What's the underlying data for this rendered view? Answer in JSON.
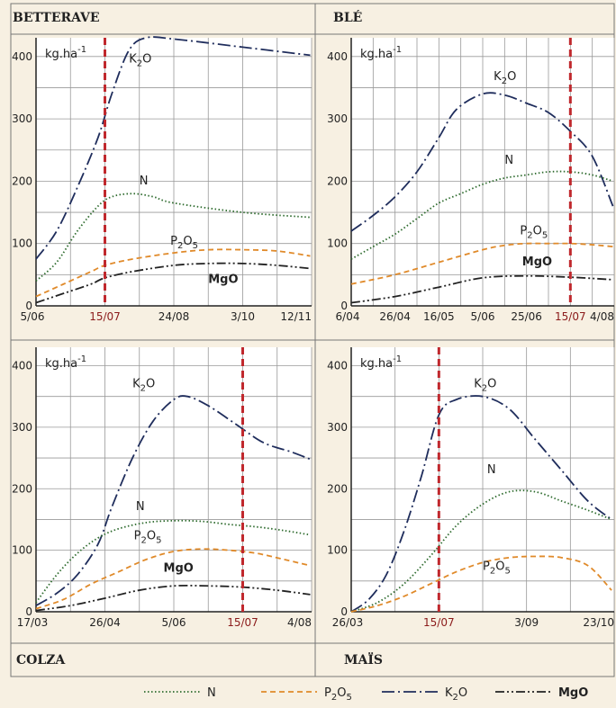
{
  "colors": {
    "N": "#2e6b2e",
    "P2O5": "#e08a2a",
    "K2O": "#1f2d5c",
    "MgO": "#222222",
    "harvest_line": "#c0282d",
    "grid": "#999999",
    "panel_bg": "#ffffff",
    "page_bg": "#f7f0e2"
  },
  "headers": {
    "top_left": "BETTERAVE",
    "top_right": "BLÉ",
    "bottom_left": "COLZA",
    "bottom_right": "MAÏS"
  },
  "unit_label": "kg.ha",
  "unit_exp": "-1",
  "legend": [
    {
      "key": "N",
      "label": "N"
    },
    {
      "key": "P2O5",
      "label": "P",
      "sub": "2",
      "after": "O",
      "sub2": "5"
    },
    {
      "key": "K2O",
      "label": "K",
      "sub": "2",
      "after": "O",
      "sub2": ""
    },
    {
      "key": "MgO",
      "label": "MgO",
      "bold": true
    }
  ],
  "chart_data": [
    {
      "type": "line",
      "title": "BETTERAVE",
      "ylabel": "kg.ha-1",
      "ylim": [
        0,
        430
      ],
      "yticks": [
        0,
        100,
        200,
        300,
        400
      ],
      "xticks": [
        {
          "label": "5/06"
        },
        {
          "label": "15/07",
          "red": true
        },
        {
          "label": "24/08"
        },
        {
          "label": "3/10"
        },
        {
          "label": "12/11"
        }
      ],
      "harvest_label": "15/07",
      "harvest_tick_index": 1,
      "series": [
        {
          "name": "K2O",
          "label": "K",
          "sub": "2",
          "after": "O",
          "x": [
            0,
            0.3,
            0.6,
            0.9,
            1.1,
            1.35,
            1.6,
            2,
            3,
            3.98
          ],
          "y": [
            75,
            120,
            190,
            270,
            340,
            410,
            430,
            428,
            415,
            402
          ]
        },
        {
          "name": "N",
          "label": "N",
          "x": [
            0,
            0.3,
            0.6,
            0.9,
            1.1,
            1.4,
            1.7,
            2,
            3,
            3.98
          ],
          "y": [
            40,
            70,
            120,
            160,
            175,
            180,
            175,
            165,
            150,
            142
          ]
        },
        {
          "name": "P2O5",
          "label": "P",
          "sub": "2",
          "after": "O",
          "sub2": "5",
          "x": [
            0,
            0.4,
            0.8,
            1,
            1.4,
            2,
            2.5,
            3,
            3.5,
            3.98
          ],
          "y": [
            15,
            35,
            55,
            65,
            75,
            85,
            90,
            90,
            88,
            80
          ]
        },
        {
          "name": "MgO",
          "label": "MgO",
          "bold": true,
          "x": [
            0,
            0.4,
            0.8,
            1,
            1.4,
            2,
            2.5,
            3,
            3.5,
            3.98
          ],
          "y": [
            5,
            20,
            35,
            45,
            55,
            65,
            68,
            68,
            65,
            60
          ]
        }
      ],
      "labels_pos": {
        "K2O": [
          1.35,
          390
        ],
        "N": [
          1.5,
          195
        ],
        "P2O5": [
          1.95,
          98
        ],
        "MgO": [
          2.5,
          37
        ]
      }
    },
    {
      "type": "line",
      "title": "BLÉ",
      "ylabel": "kg.ha-1",
      "ylim": [
        0,
        430
      ],
      "yticks": [
        0,
        100,
        200,
        300,
        400
      ],
      "xticks": [
        {
          "label": "6/04"
        },
        {
          "label": "26/04"
        },
        {
          "label": "16/05"
        },
        {
          "label": "5/06"
        },
        {
          "label": "25/06"
        },
        {
          "label": "15/07",
          "red": true
        },
        {
          "label": "4/08"
        }
      ],
      "harvest_label": "15/07",
      "harvest_tick_index": 5,
      "series": [
        {
          "name": "K2O",
          "label": "K",
          "sub": "2",
          "after": "O",
          "x": [
            0,
            0.5,
            1,
            1.5,
            2,
            2.4,
            3,
            3.5,
            4,
            4.5,
            5,
            5.5,
            5.97
          ],
          "y": [
            120,
            145,
            175,
            215,
            270,
            315,
            340,
            338,
            325,
            310,
            280,
            240,
            160
          ]
        },
        {
          "name": "N",
          "label": "N",
          "x": [
            0,
            0.5,
            1,
            1.5,
            2,
            2.5,
            3,
            3.5,
            4,
            4.5,
            5,
            5.5,
            5.97
          ],
          "y": [
            75,
            95,
            115,
            140,
            165,
            180,
            195,
            205,
            210,
            215,
            215,
            210,
            200
          ]
        },
        {
          "name": "P2O5",
          "label": "P",
          "sub": "2",
          "after": "O",
          "sub2": "5",
          "x": [
            0,
            1,
            2,
            3,
            3.5,
            4,
            4.5,
            5,
            5.5,
            5.97
          ],
          "y": [
            35,
            50,
            70,
            90,
            97,
            100,
            100,
            100,
            98,
            95
          ]
        },
        {
          "name": "MgO",
          "label": "MgO",
          "bold": true,
          "x": [
            0,
            1,
            2,
            3,
            4,
            5,
            5.97
          ],
          "y": [
            5,
            15,
            30,
            45,
            48,
            46,
            42
          ]
        }
      ],
      "labels_pos": {
        "K2O": [
          3.25,
          362
        ],
        "N": [
          3.5,
          228
        ],
        "P2O5": [
          3.85,
          115
        ],
        "MgO": [
          3.9,
          65
        ]
      }
    },
    {
      "type": "line",
      "title": "COLZA",
      "ylabel": "kg.ha-1",
      "ylim": [
        0,
        430
      ],
      "yticks": [
        0,
        100,
        200,
        300,
        400
      ],
      "xticks": [
        {
          "label": "17/03"
        },
        {
          "label": "26/04"
        },
        {
          "label": "5/06"
        },
        {
          "label": "15/07",
          "red": true
        },
        {
          "label": "4/08"
        }
      ],
      "harvest_label": "15/07",
      "harvest_tick_index": 3,
      "series": [
        {
          "name": "K2O",
          "label": "K",
          "sub": "2",
          "after": "O",
          "x": [
            0,
            0.3,
            0.6,
            0.9,
            1.1,
            1.4,
            1.7,
            2,
            2.2,
            2.5,
            2.9,
            3.3,
            3.7,
            3.98
          ],
          "y": [
            10,
            30,
            60,
            110,
            170,
            250,
            310,
            345,
            350,
            335,
            305,
            275,
            260,
            248
          ]
        },
        {
          "name": "N",
          "label": "N",
          "x": [
            0,
            0.3,
            0.6,
            0.9,
            1.2,
            1.6,
            2,
            2.4,
            2.8,
            3.2,
            3.6,
            3.98
          ],
          "y": [
            15,
            60,
            95,
            120,
            135,
            145,
            148,
            147,
            142,
            138,
            132,
            125
          ]
        },
        {
          "name": "P2O5",
          "label": "P",
          "sub": "2",
          "after": "O",
          "sub2": "5",
          "x": [
            0,
            0.4,
            0.8,
            1.2,
            1.6,
            2,
            2.4,
            2.8,
            3.2,
            3.6,
            3.98
          ],
          "y": [
            5,
            20,
            45,
            65,
            85,
            98,
            102,
            100,
            95,
            85,
            75
          ]
        },
        {
          "name": "MgO",
          "label": "MgO",
          "bold": true,
          "x": [
            0,
            0.5,
            1,
            1.5,
            2,
            2.5,
            3,
            3.5,
            3.98
          ],
          "y": [
            2,
            10,
            22,
            35,
            42,
            42,
            40,
            35,
            28
          ]
        }
      ],
      "labels_pos": {
        "K2O": [
          1.4,
          365
        ],
        "N": [
          1.45,
          165
        ],
        "P2O5": [
          1.42,
          118
        ],
        "MgO": [
          1.85,
          65
        ]
      }
    },
    {
      "type": "line",
      "title": "MAÏS",
      "ylabel": "kg.ha-1",
      "ylim": [
        0,
        430
      ],
      "yticks": [
        0,
        100,
        200,
        300,
        400
      ],
      "xticks": [
        {
          "label": "26/03"
        },
        {
          "label": "15/07",
          "red": true
        },
        {
          "label": "3/09"
        },
        {
          "label": "23/10"
        }
      ],
      "harvest_label": "15/07",
      "harvest_tick_index": 1,
      "series": [
        {
          "name": "K2O",
          "label": "K",
          "sub": "2",
          "after": "O",
          "x": [
            0,
            0.2,
            0.4,
            0.6,
            0.8,
            1,
            1.2,
            1.5,
            1.8,
            2.1,
            2.4,
            2.7,
            2.97
          ],
          "y": [
            0,
            20,
            60,
            130,
            220,
            320,
            345,
            350,
            330,
            280,
            230,
            180,
            150
          ]
        },
        {
          "name": "N",
          "label": "N",
          "x": [
            0,
            0.3,
            0.6,
            0.9,
            1.2,
            1.5,
            1.8,
            2.1,
            2.4,
            2.7,
            2.97
          ],
          "y": [
            0,
            15,
            45,
            90,
            140,
            175,
            195,
            195,
            180,
            165,
            150
          ]
        },
        {
          "name": "P2O5",
          "label": "P",
          "sub": "2",
          "after": "O",
          "sub2": "5",
          "x": [
            0,
            0.3,
            0.6,
            0.9,
            1.2,
            1.5,
            1.8,
            2.1,
            2.4,
            2.7,
            2.97
          ],
          "y": [
            0,
            10,
            25,
            45,
            65,
            80,
            88,
            90,
            88,
            75,
            35
          ]
        },
        {
          "name": "MgO",
          "label": "MgO",
          "bold": true,
          "x": [],
          "y": []
        }
      ],
      "labels_pos": {
        "K2O": [
          1.4,
          365
        ],
        "N": [
          1.55,
          225
        ],
        "P2O5": [
          1.5,
          68
        ]
      }
    }
  ]
}
